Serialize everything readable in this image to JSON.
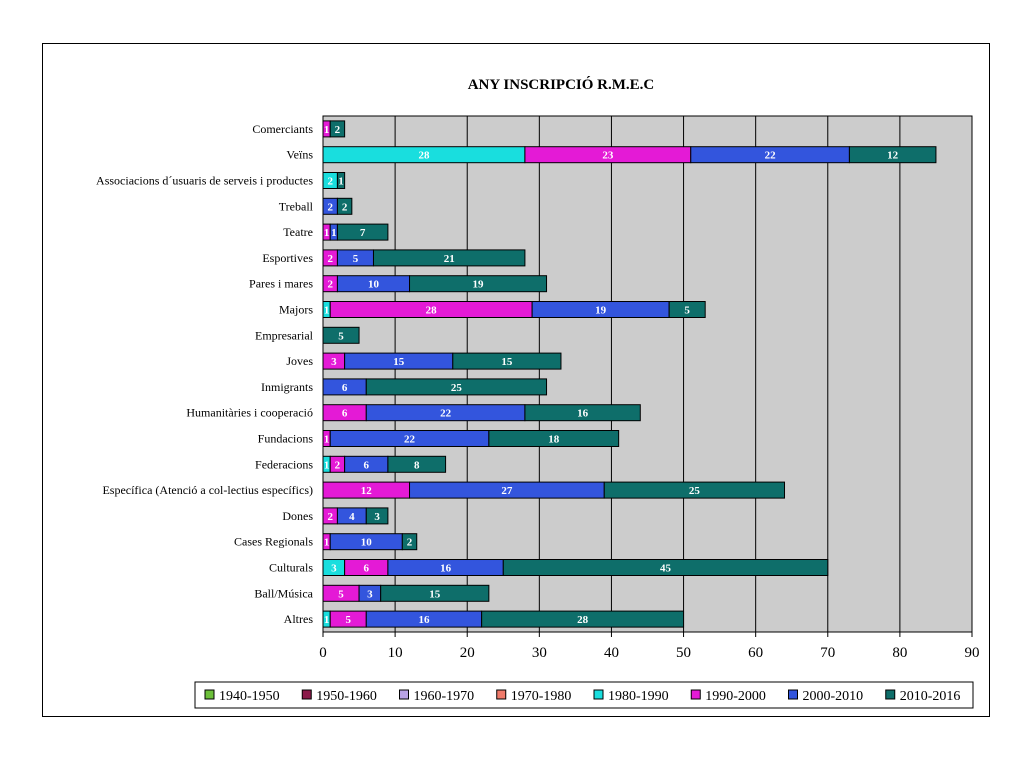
{
  "chart_data": {
    "type": "bar",
    "orientation": "horizontal",
    "stacked": true,
    "title": "ANY INSCRIPCIÓ R.M.E.C",
    "xlim": [
      0,
      90
    ],
    "xticks": [
      0,
      10,
      20,
      30,
      40,
      50,
      60,
      70,
      80,
      90
    ],
    "grid": true,
    "legend_position": "bottom",
    "categories": [
      "Comerciants",
      "Veïns",
      "Associacions d´usuaris de serveis i productes",
      "Treball",
      "Teatre",
      "Esportives",
      "Pares i mares",
      "Majors",
      "Empresarial",
      "Joves",
      "Inmigrants",
      "Humanitàries i cooperació",
      "Fundacions",
      "Federacions",
      "Específica (Atenció a col-lectius específics)",
      "Dones",
      "Cases Regionals",
      "Culturals",
      "Ball/Música",
      "Altres"
    ],
    "series": [
      {
        "name": "1940-1950",
        "color": "#6cc03a",
        "values": [
          0,
          0,
          0,
          0,
          0,
          0,
          0,
          0,
          0,
          0,
          0,
          0,
          0,
          0,
          0,
          0,
          0,
          0,
          0,
          0
        ]
      },
      {
        "name": "1950-1960",
        "color": "#8b1a4a",
        "values": [
          0,
          0,
          0,
          0,
          0,
          0,
          0,
          0,
          0,
          0,
          0,
          0,
          0,
          0,
          0,
          0,
          0,
          0,
          0,
          0
        ]
      },
      {
        "name": "1960-1970",
        "color": "#b9a3e6",
        "values": [
          0,
          0,
          0,
          0,
          0,
          0,
          0,
          0,
          0,
          0,
          0,
          0,
          0,
          0,
          0,
          0,
          0,
          0,
          0,
          0
        ]
      },
      {
        "name": "1970-1980",
        "color": "#f07a6a",
        "values": [
          0,
          0,
          0,
          0,
          0,
          0,
          0,
          0,
          0,
          0,
          0,
          0,
          0,
          0,
          0,
          0,
          0,
          0,
          0,
          0
        ]
      },
      {
        "name": "1980-1990",
        "color": "#19dede",
        "values": [
          0,
          28,
          2,
          0,
          0,
          0,
          0,
          1,
          0,
          0,
          0,
          0,
          0,
          1,
          0,
          0,
          0,
          3,
          0,
          1
        ]
      },
      {
        "name": "1990-2000",
        "color": "#e41ad6",
        "values": [
          1,
          23,
          0,
          0,
          1,
          2,
          2,
          28,
          0,
          3,
          0,
          6,
          1,
          2,
          12,
          2,
          1,
          6,
          5,
          5
        ]
      },
      {
        "name": "2000-2010",
        "color": "#3355dd",
        "values": [
          0,
          22,
          0,
          2,
          1,
          5,
          10,
          19,
          0,
          15,
          6,
          22,
          22,
          6,
          27,
          4,
          10,
          16,
          3,
          16
        ]
      },
      {
        "name": "2010-2016",
        "color": "#0e6e6a",
        "values": [
          2,
          12,
          1,
          2,
          7,
          21,
          19,
          5,
          5,
          15,
          25,
          16,
          18,
          8,
          25,
          3,
          2,
          45,
          15,
          28
        ]
      }
    ]
  }
}
